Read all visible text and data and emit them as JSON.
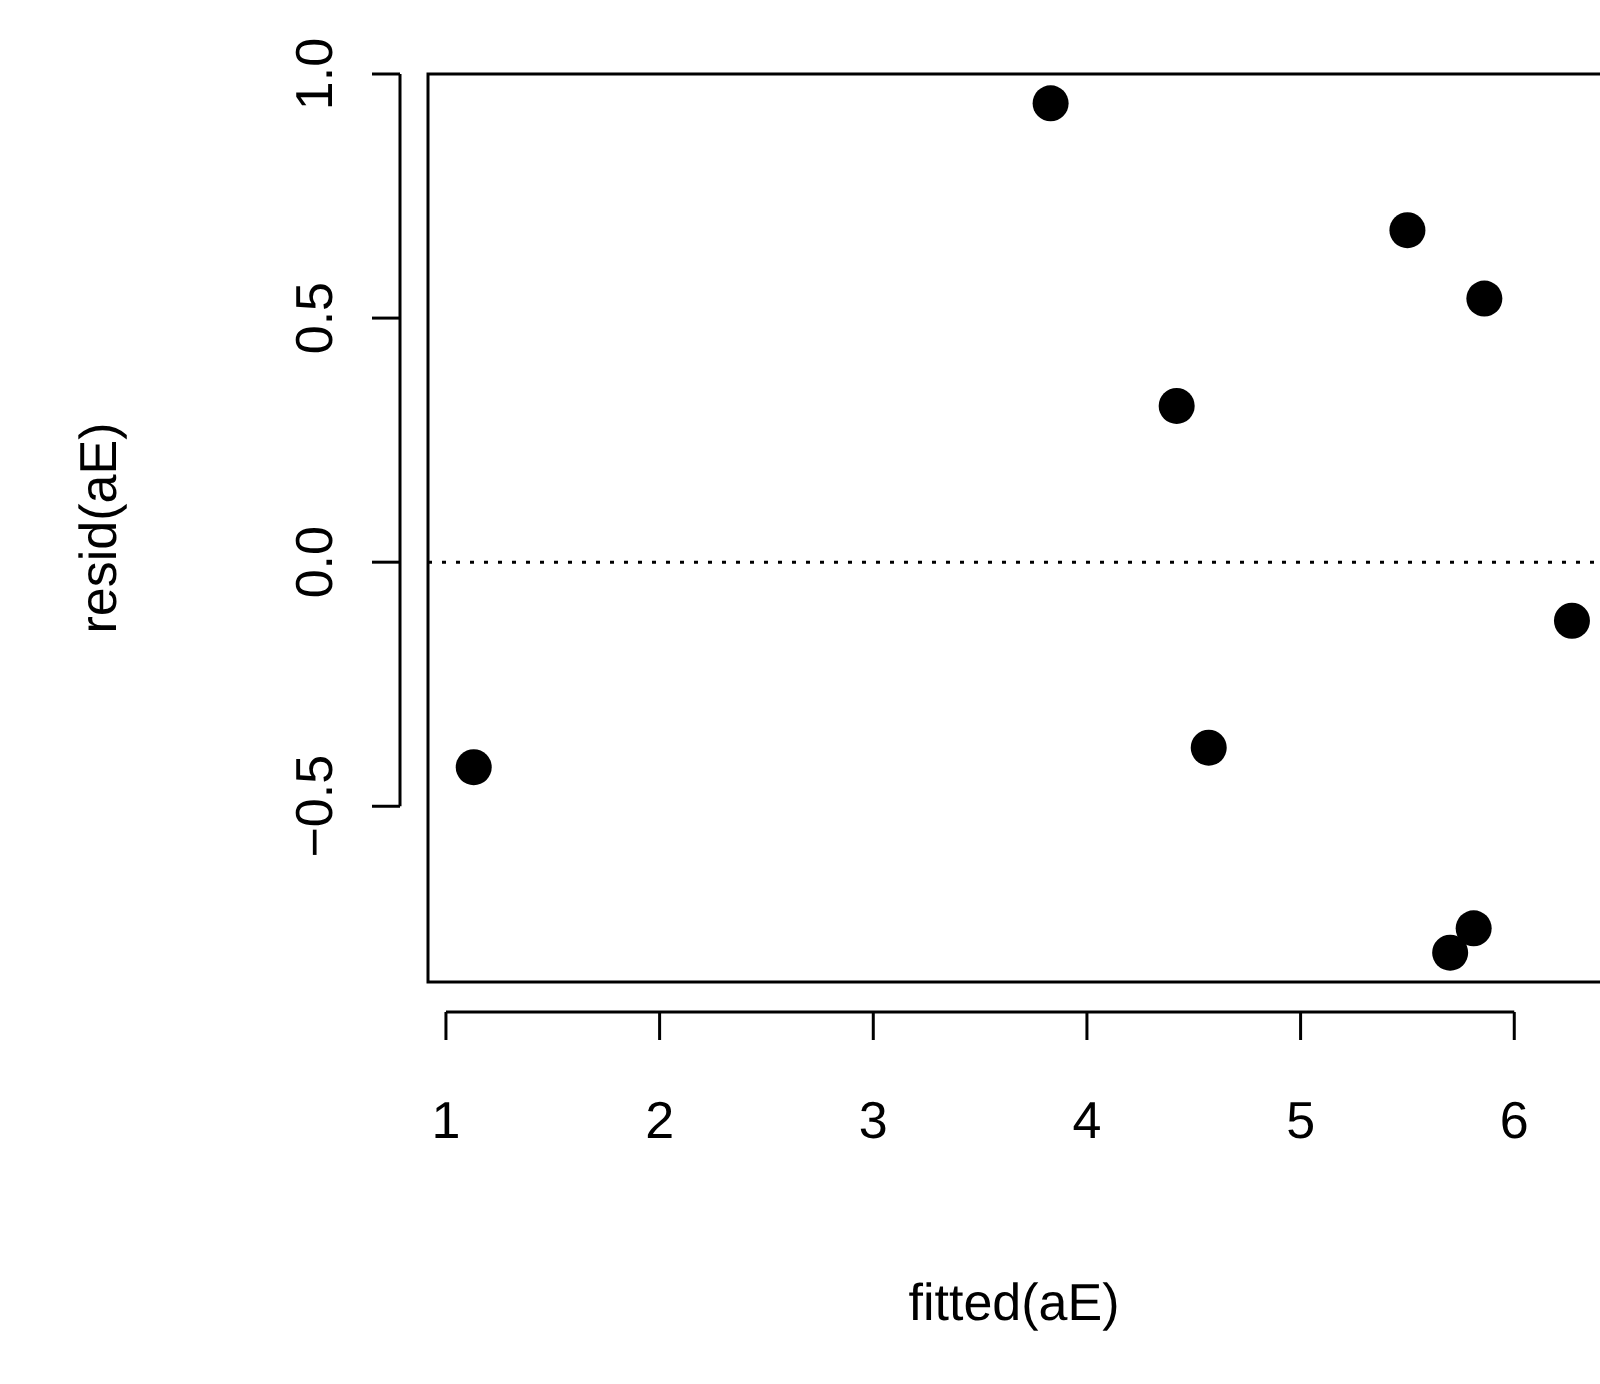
{
  "chart_data": {
    "type": "scatter",
    "xlabel": "fitted(aE)",
    "ylabel": "resid(aE)",
    "x": [
      1.13,
      3.83,
      4.42,
      4.57,
      5.5,
      5.86,
      6.27,
      5.7,
      5.81
    ],
    "values": [
      -0.42,
      0.94,
      0.32,
      -0.38,
      0.68,
      0.54,
      -0.12,
      -0.8,
      -0.75
    ],
    "color": "#000000",
    "marker": "circle",
    "grid": false,
    "xlim": [
      0.916,
      6.42
    ],
    "xticks": [
      1,
      2,
      3,
      4,
      5,
      6
    ],
    "ylim": [
      -0.86,
      1.0
    ],
    "yticks": [
      {
        "value": -0.5,
        "label": "−0.5"
      },
      {
        "value": 0,
        "label": "0.0"
      },
      {
        "value": 0.5,
        "label": "0.5"
      },
      {
        "value": 1,
        "label": "1.0"
      }
    ],
    "ref_lines": [
      {
        "axis": "y",
        "value": 0,
        "line_style": "dotted",
        "color": "#000000"
      }
    ]
  }
}
